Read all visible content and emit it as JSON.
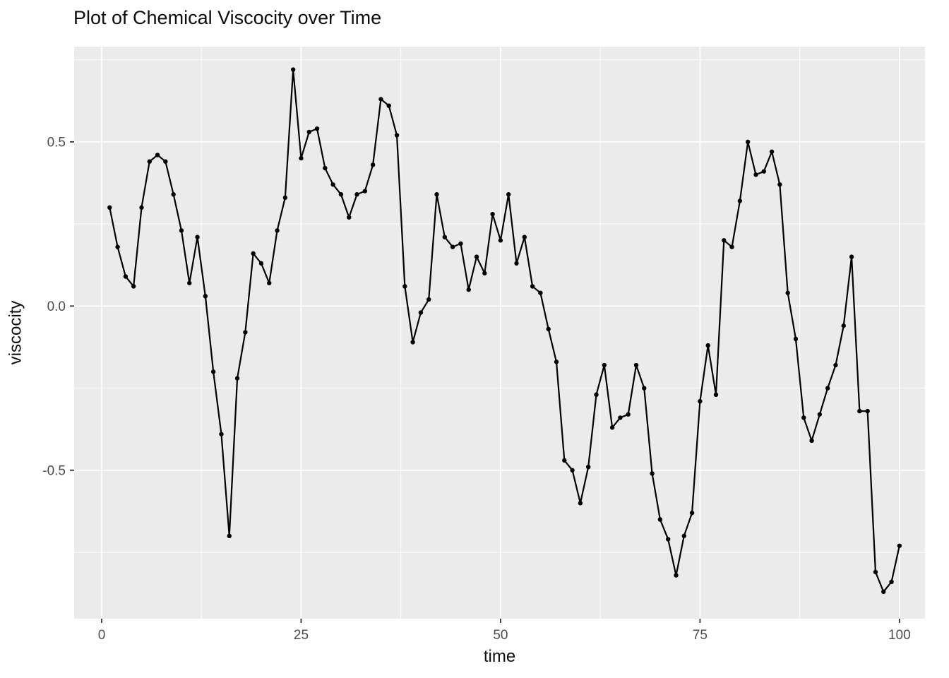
{
  "chart_data": {
    "type": "line",
    "title": "Plot of Chemical Viscocity over Time",
    "xlabel": "time",
    "ylabel": "viscocity",
    "legend": "none",
    "grid": "on",
    "panel_color": "#EBEBEB",
    "grid_color": "#FFFFFF",
    "line_color": "#000000",
    "point_color": "#000000",
    "tick_label_color": "#4D4D4D",
    "tick_mark_color": "#333333",
    "xlim": [
      -3.45,
      103.2
    ],
    "ylim": [
      -0.952,
      0.79
    ],
    "x_tick_values": [
      0,
      25,
      50,
      75,
      100
    ],
    "x_tick_labels": [
      "0",
      "25",
      "50",
      "75",
      "100"
    ],
    "x_minor_values": [
      12.5,
      37.5,
      62.5,
      87.5
    ],
    "y_tick_values": [
      0.5,
      0.0,
      -0.5
    ],
    "y_tick_labels": [
      "0.5",
      "0.0",
      "-0.5"
    ],
    "y_minor_values": [
      0.75,
      0.25,
      -0.25,
      -0.75
    ],
    "x": [
      1,
      2,
      3,
      4,
      5,
      6,
      7,
      8,
      9,
      10,
      11,
      12,
      13,
      14,
      15,
      16,
      17,
      18,
      19,
      20,
      21,
      22,
      23,
      24,
      25,
      26,
      27,
      28,
      29,
      30,
      31,
      32,
      33,
      34,
      35,
      36,
      37,
      38,
      39,
      40,
      41,
      42,
      43,
      44,
      45,
      46,
      47,
      48,
      49,
      50,
      51,
      52,
      53,
      54,
      55,
      56,
      57,
      58,
      59,
      60,
      61,
      62,
      63,
      64,
      65,
      66,
      67,
      68,
      69,
      70,
      71,
      72,
      73,
      74,
      75,
      76,
      77,
      78,
      79,
      80,
      81,
      82,
      83,
      84,
      85,
      86,
      87,
      88,
      89,
      90,
      91,
      92,
      93,
      94,
      95,
      96,
      97,
      98,
      99,
      100
    ],
    "values": [
      0.3,
      0.18,
      0.09,
      0.06,
      0.3,
      0.44,
      0.46,
      0.44,
      0.34,
      0.23,
      0.07,
      0.21,
      0.03,
      -0.2,
      -0.39,
      -0.7,
      -0.22,
      -0.08,
      0.16,
      0.13,
      0.07,
      0.23,
      0.33,
      0.72,
      0.45,
      0.53,
      0.54,
      0.42,
      0.37,
      0.34,
      0.27,
      0.34,
      0.35,
      0.43,
      0.63,
      0.61,
      0.52,
      0.06,
      -0.11,
      -0.02,
      0.02,
      0.34,
      0.21,
      0.18,
      0.19,
      0.05,
      0.15,
      0.1,
      0.28,
      0.2,
      0.34,
      0.13,
      0.21,
      0.06,
      0.04,
      -0.07,
      -0.17,
      -0.47,
      -0.5,
      -0.6,
      -0.49,
      -0.27,
      -0.18,
      -0.37,
      -0.34,
      -0.33,
      -0.18,
      -0.25,
      -0.51,
      -0.65,
      -0.71,
      -0.82,
      -0.7,
      -0.63,
      -0.29,
      -0.12,
      -0.27,
      0.2,
      0.18,
      0.32,
      0.5,
      0.4,
      0.41,
      0.47,
      0.37,
      0.04,
      -0.1,
      -0.34,
      -0.41,
      -0.33,
      -0.25,
      -0.18,
      -0.06,
      0.15,
      -0.32,
      -0.32,
      -0.81,
      -0.87,
      -0.84,
      -0.73
    ]
  }
}
